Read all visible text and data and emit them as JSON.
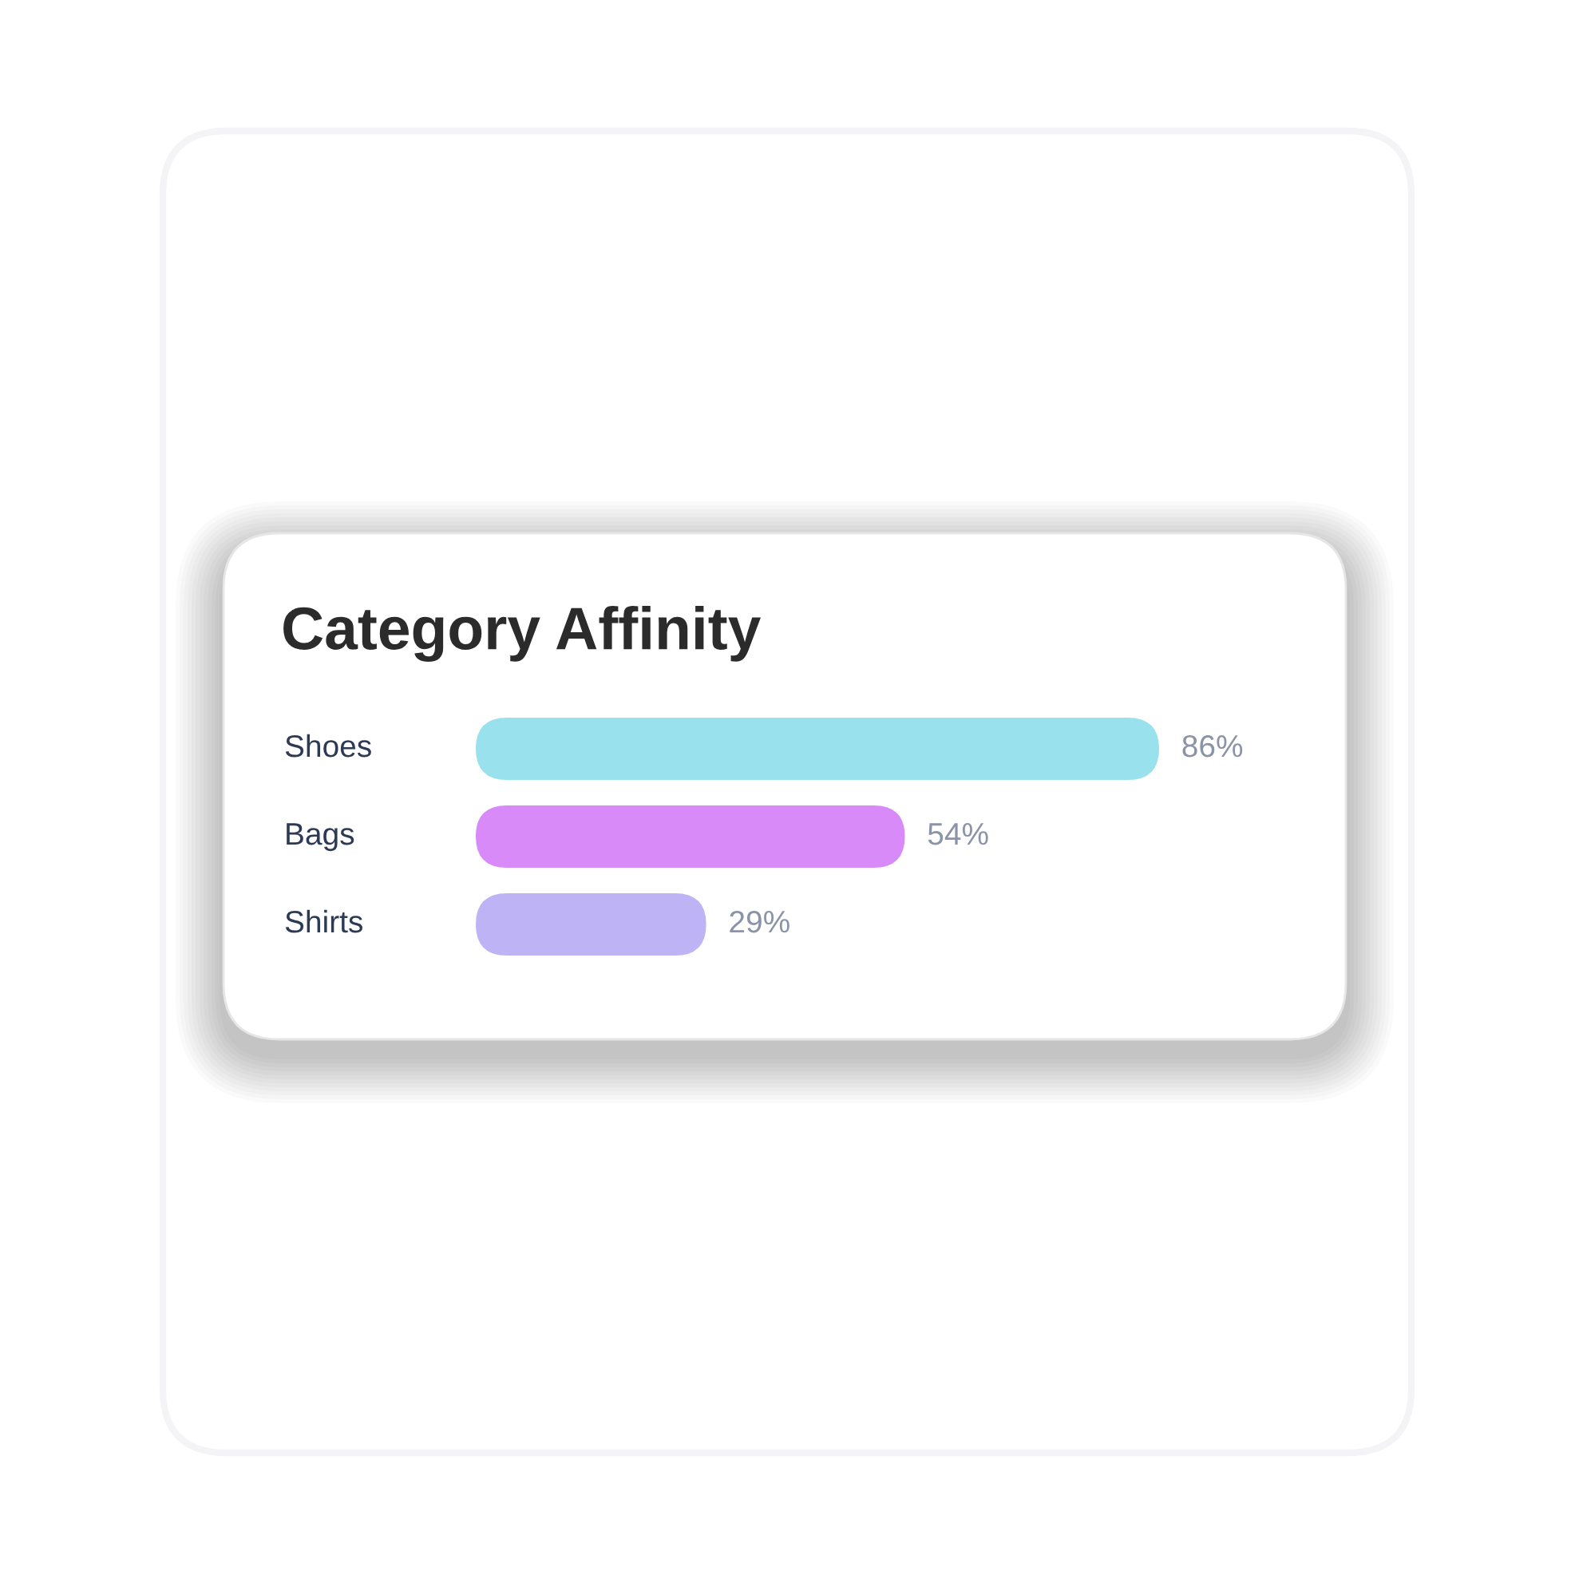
{
  "chart_data": {
    "type": "bar",
    "orientation": "horizontal",
    "title": "Category Affinity",
    "categories": [
      "Shoes",
      "Bags",
      "Shirts"
    ],
    "values": [
      86,
      54,
      29
    ],
    "colors": [
      "#9ae1ee",
      "#d98af9",
      "#bdb3f5"
    ],
    "value_labels": [
      "86%",
      "54%",
      "29%"
    ],
    "tick_labels": false,
    "grid": false
  }
}
